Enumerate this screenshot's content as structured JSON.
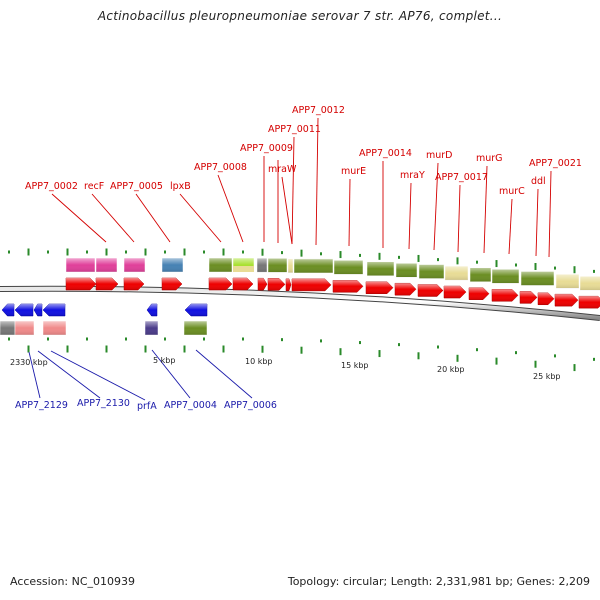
{
  "title": "Actinobacillus pleuropneumoniae serovar 7 str. AP76, complet...",
  "accession": "Accession: NC_010939",
  "topology": "Topology: circular; Length: 2,331,981 bp; Genes: 2,209",
  "colors": {
    "gene_red": "#ee0000",
    "gene_blue": "#1010e0",
    "tick_green": "#2a8a2a",
    "cog_olive": "#6b8e23",
    "cog_magenta": "#e0409a",
    "cog_steelblue": "#4682b4",
    "cog_khaki": "#e8dc96",
    "cog_lime": "#a8e030",
    "cog_salmon": "#f08a8a",
    "cog_gray": "#777777",
    "cog_indigo": "#4b3c8a"
  },
  "top_labels": [
    {
      "text": "APP7_0002"
    },
    {
      "text": "recF"
    },
    {
      "text": "APP7_0005"
    },
    {
      "text": "lpxB"
    },
    {
      "text": "APP7_0008"
    },
    {
      "text": "APP7_0009"
    },
    {
      "text": "mraW"
    },
    {
      "text": "APP7_0011"
    },
    {
      "text": "APP7_0012"
    },
    {
      "text": "murE"
    },
    {
      "text": "APP7_0014"
    },
    {
      "text": "mraY"
    },
    {
      "text": "murD"
    },
    {
      "text": "APP7_0017"
    },
    {
      "text": "murG"
    },
    {
      "text": "murC"
    },
    {
      "text": "ddl"
    },
    {
      "text": "APP7_0021"
    }
  ],
  "bottom_labels": [
    {
      "text": "APP7_2129"
    },
    {
      "text": "APP7_2130"
    },
    {
      "text": "prfA"
    },
    {
      "text": "APP7_0004"
    },
    {
      "text": "APP7_0006"
    }
  ],
  "scale_labels": [
    "2330 kbp",
    "5 kbp",
    "10 kbp",
    "15 kbp",
    "20 kbp",
    "25 kbp"
  ]
}
